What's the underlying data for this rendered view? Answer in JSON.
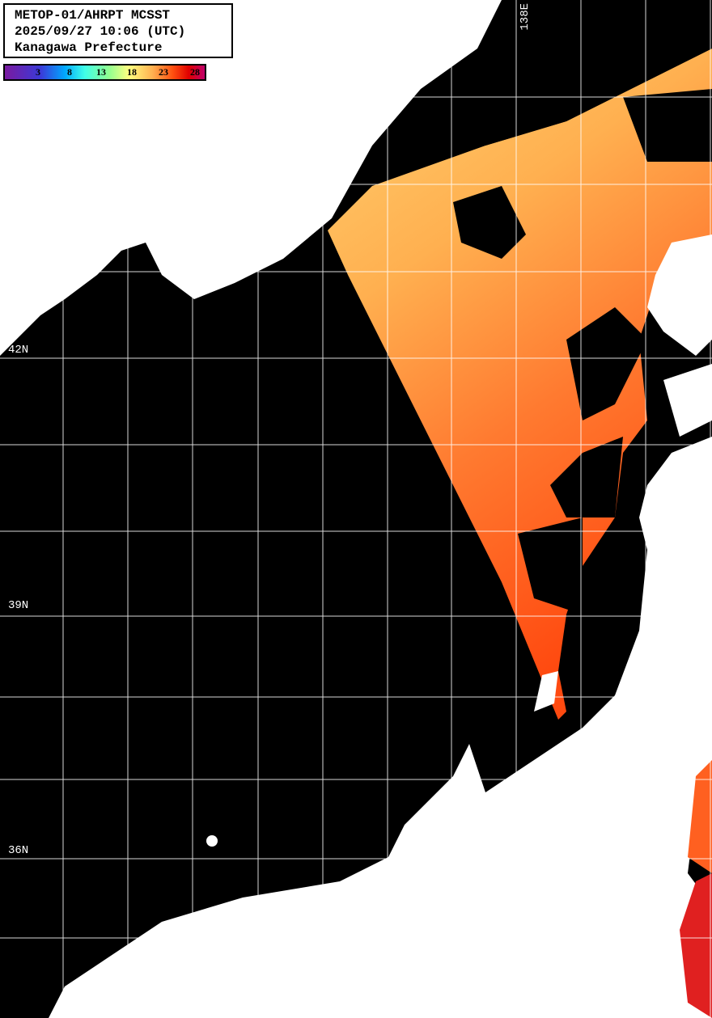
{
  "header": {
    "line1": "METOP-01/AHRPT MCSST",
    "line2": "2025/09/27 10:06 (UTC)",
    "line3": "Kanagawa Prefecture"
  },
  "colorbar": {
    "ticks": [
      "3",
      "8",
      "13",
      "18",
      "23",
      "28"
    ],
    "colors": [
      "#7a1aa0",
      "#3a3ad8",
      "#00a8ff",
      "#40ffe8",
      "#90ff90",
      "#ffff80",
      "#ffb050",
      "#ff5010",
      "#e00000",
      "#c0006a"
    ]
  },
  "grid_labels": {
    "lat_42": "42N",
    "lat_39": "39N",
    "lat_36": "36N",
    "lon_138": "138E"
  },
  "colors": {
    "land": "#ffffff",
    "no_data": "#000000",
    "grid": "#ffffff"
  }
}
